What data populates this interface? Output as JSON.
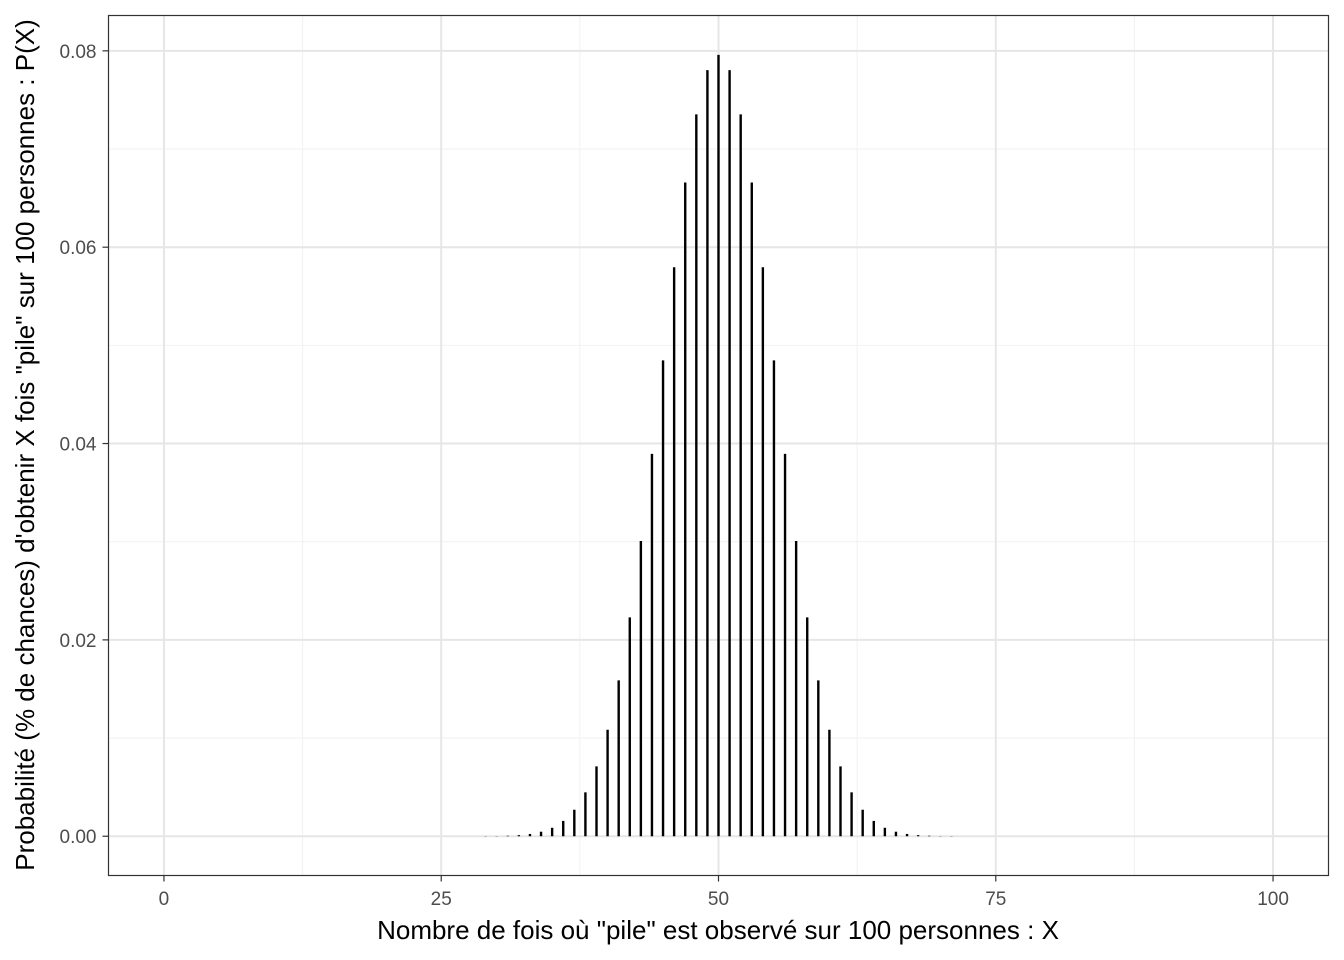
{
  "chart_data": {
    "type": "bar",
    "title": "",
    "xlabel": "Nombre de fois où \"pile\" est observé sur 100 personnes : X",
    "ylabel": "Probabilité (% de chances) d'obtenir X fois \"pile\" sur 100 personnes : P(X)",
    "xlim": [
      -5,
      105
    ],
    "ylim": [
      -0.004,
      0.0836
    ],
    "x_ticks": [
      0,
      25,
      50,
      75,
      100
    ],
    "x_tick_labels": [
      "0",
      "25",
      "50",
      "75",
      "100"
    ],
    "y_ticks": [
      0,
      0.02,
      0.04,
      0.06,
      0.08
    ],
    "y_tick_labels": [
      "0.00",
      "0.02",
      "0.04",
      "0.06",
      "0.08"
    ],
    "grid": true,
    "distribution": "binomial",
    "n": 100,
    "p": 0.5,
    "x": [
      29,
      30,
      31,
      32,
      33,
      34,
      35,
      36,
      37,
      38,
      39,
      40,
      41,
      42,
      43,
      44,
      45,
      46,
      47,
      48,
      49,
      50,
      51,
      52,
      53,
      54,
      55,
      56,
      57,
      58,
      59,
      60,
      61,
      62,
      63,
      64,
      65,
      66,
      67,
      68,
      69,
      70,
      71
    ],
    "values": [
      2e-05,
      2e-05,
      5e-05,
      0.00011,
      0.00023,
      0.00046,
      0.00086,
      0.00156,
      0.0027,
      0.00447,
      0.00711,
      0.01084,
      0.01587,
      0.02229,
      0.03007,
      0.03895,
      0.04847,
      0.05796,
      0.06659,
      0.07353,
      0.07803,
      0.07959,
      0.07803,
      0.07353,
      0.06659,
      0.05796,
      0.04847,
      0.03895,
      0.03007,
      0.02229,
      0.01587,
      0.01084,
      0.00711,
      0.00447,
      0.0027,
      0.00156,
      0.00086,
      0.00046,
      0.00023,
      0.00011,
      5e-05,
      2e-05,
      2e-05
    ],
    "colors": {
      "bar": "#000000",
      "grid_major": "#e6e6e6",
      "grid_minor": "#f2f2f2",
      "panel_border": "#333333",
      "tick": "#333333"
    }
  }
}
